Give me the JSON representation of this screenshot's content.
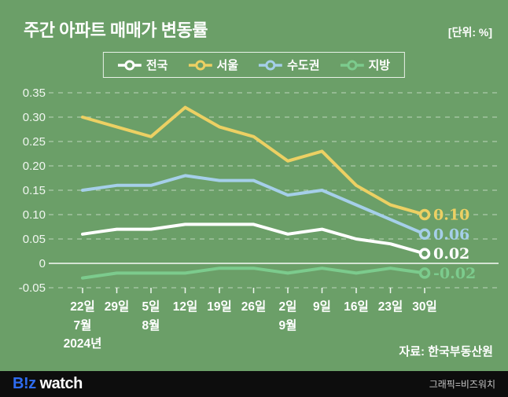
{
  "title": "주간 아파트 매매가 변동률",
  "unit_label": "[단위: %]",
  "source": "자료: 한국부동산원",
  "footer": {
    "logo_biz": "B!z",
    "logo_watch": "watch",
    "credit": "그래픽=비즈워치"
  },
  "colors": {
    "background": "#6b9f68",
    "national": "#ffffff",
    "seoul": "#ecd063",
    "metro": "#a5cfe9",
    "regional": "#7ccb8d",
    "grid": "rgba(255,255,255,0.45)",
    "zero_line": "rgba(255,255,255,0.95)",
    "axis_text": "rgba(255,255,255,0.9)",
    "footer_bg": "#0d0d0d",
    "logo_blue": "#2e6cf0"
  },
  "chart_data": {
    "type": "line",
    "title": "주간 아파트 매매가 변동률",
    "unit": "%",
    "categories": [
      "22일",
      "29일",
      "5일",
      "12일",
      "19일",
      "26일",
      "2일",
      "9일",
      "16일",
      "23일",
      "30일"
    ],
    "month_labels": [
      {
        "index": 0,
        "label": "7월"
      },
      {
        "index": 2,
        "label": "8월"
      },
      {
        "index": 6,
        "label": "9월"
      }
    ],
    "year_label": {
      "index": 0,
      "label": "2024년"
    },
    "series": [
      {
        "key": "national",
        "name": "전국",
        "color": "#ffffff",
        "values": [
          0.06,
          0.07,
          0.07,
          0.08,
          0.08,
          0.08,
          0.06,
          0.07,
          0.05,
          0.04,
          0.02
        ],
        "end_label": "0.02"
      },
      {
        "key": "seoul",
        "name": "서울",
        "color": "#ecd063",
        "values": [
          0.3,
          0.28,
          0.26,
          0.32,
          0.28,
          0.26,
          0.21,
          0.23,
          0.16,
          0.12,
          0.1
        ],
        "end_label": "0.10"
      },
      {
        "key": "metro",
        "name": "수도권",
        "color": "#a5cfe9",
        "values": [
          0.15,
          0.16,
          0.16,
          0.18,
          0.17,
          0.17,
          0.14,
          0.15,
          0.12,
          0.09,
          0.06
        ],
        "end_label": "0.06"
      },
      {
        "key": "regional",
        "name": "지방",
        "color": "#7ccb8d",
        "values": [
          -0.03,
          -0.02,
          -0.02,
          -0.02,
          -0.01,
          -0.01,
          -0.02,
          -0.01,
          -0.02,
          -0.01,
          -0.02
        ],
        "end_label": "-0.02"
      }
    ],
    "y_ticks": [
      0.35,
      0.3,
      0.25,
      0.2,
      0.15,
      0.1,
      0.05,
      0,
      -0.05
    ],
    "y_tick_labels": [
      "0.35",
      "0.30",
      "0.25",
      "0.20",
      "0.15",
      "0.10",
      "0.05",
      "0",
      "-0.05"
    ],
    "ylim": [
      -0.05,
      0.35
    ],
    "grid": true,
    "legend_position": "top"
  }
}
